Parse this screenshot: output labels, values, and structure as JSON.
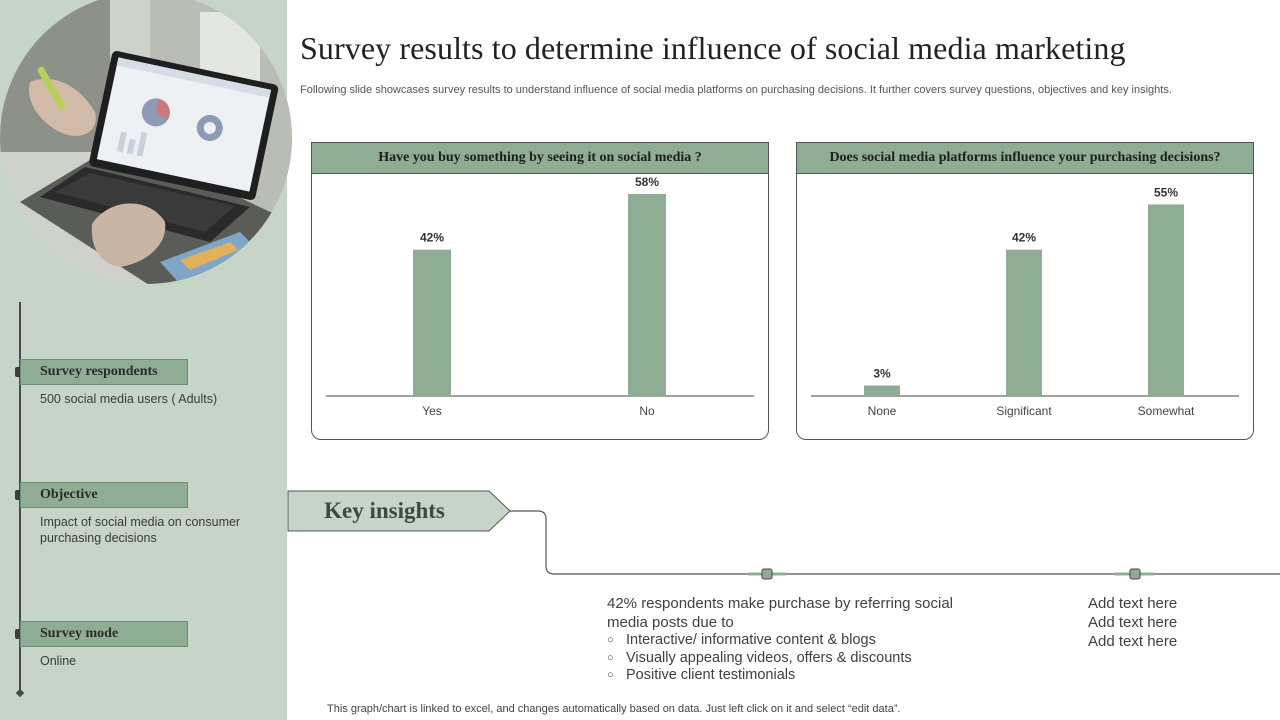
{
  "title": "Survey results to determine influence of social media marketing",
  "subtitle": "Following slide showcases survey results to understand influence of social media platforms on purchasing decisions. It further covers survey questions, objectives and key insights.",
  "sidebar": {
    "items": [
      {
        "label": "Survey respondents",
        "text": "500 social media users ( Adults)"
      },
      {
        "label": "Objective",
        "text": "Impact of social media on consumer purchasing decisions"
      },
      {
        "label": "Survey mode",
        "text": "Online"
      }
    ]
  },
  "colors": {
    "accent": "#8fad94",
    "sidebar": "#c6d5c8",
    "bar": "#8fad94"
  },
  "chart_data": [
    {
      "type": "bar",
      "title": "Have you buy something by seeing it on social media ?",
      "categories": [
        "Yes",
        "No"
      ],
      "values": [
        42,
        58
      ],
      "data_labels": [
        "42%",
        "58%"
      ],
      "unit": "%",
      "ylim": [
        0,
        60
      ],
      "grid": false
    },
    {
      "type": "bar",
      "title": "Does social media platforms  influence your purchasing  decisions?",
      "categories": [
        "None",
        "Significant",
        "Somewhat"
      ],
      "values": [
        3,
        42,
        55
      ],
      "data_labels": [
        "3%",
        "42%",
        "55%"
      ],
      "unit": "%",
      "ylim": [
        0,
        60
      ],
      "grid": false
    }
  ],
  "insights": {
    "heading": "Key insights",
    "lead": "42% respondents make purchase by referring social media posts due to",
    "bullets": [
      "Interactive/ informative content & blogs",
      "Visually appealing videos, offers & discounts",
      "Positive client testimonials"
    ],
    "placeholder_lines": [
      "Add text here",
      "Add text here",
      "Add text here"
    ]
  },
  "footer": "This graph/chart is linked to excel, and changes automatically based on data. Just left click on it and select “edit data”."
}
